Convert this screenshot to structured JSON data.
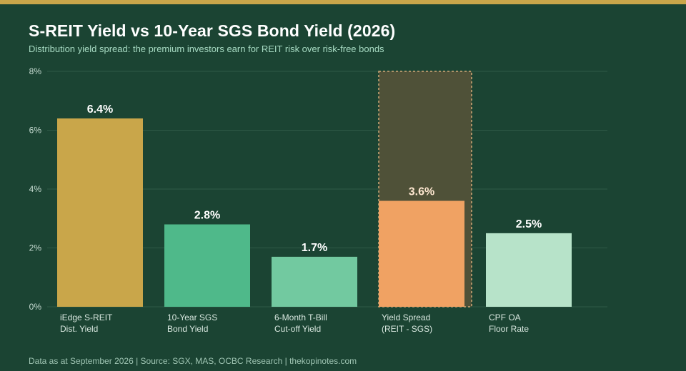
{
  "header": {
    "title": "S-REIT Yield vs 10-Year SGS Bond Yield (2026)",
    "subtitle": "Distribution yield spread: the premium investors earn for REIT risk over risk-free bonds"
  },
  "footer": {
    "text": "Data as at September 2026  |  Source: SGX, MAS, OCBC Research  |  thekopinotes.com"
  },
  "colors": {
    "background": "#1b4433",
    "accent": "#c9a64a",
    "gridline": "#2f5a47",
    "spread_highlight": "#4f5138",
    "spread_border": "#d1a979"
  },
  "chart_data": {
    "type": "bar",
    "title": "S-REIT Yield vs 10-Year SGS Bond Yield (2026)",
    "subtitle": "Distribution yield spread: the premium investors earn for REIT risk over risk-free bonds",
    "xlabel": "",
    "ylabel": "",
    "ylim": [
      0,
      8
    ],
    "yticks": [
      0,
      2,
      4,
      6,
      8
    ],
    "ytick_labels": [
      "0%",
      "2%",
      "4%",
      "6%",
      "8%"
    ],
    "grid": true,
    "categories": [
      [
        "iEdge S-REIT",
        "Dist. Yield"
      ],
      [
        "10-Year SGS",
        "Bond Yield"
      ],
      [
        "6-Month T-Bill",
        "Cut-off Yield"
      ],
      [
        "Yield Spread",
        "(REIT - SGS)"
      ],
      [
        "CPF OA",
        "Floor Rate"
      ]
    ],
    "values": [
      6.4,
      2.8,
      1.7,
      3.6,
      2.5
    ],
    "value_labels": [
      "6.4%",
      "2.8%",
      "1.7%",
      "3.6%",
      "2.5%"
    ],
    "bar_colors": [
      "#c9a64a",
      "#4fb98a",
      "#72c9a0",
      "#f0a263",
      "#b7e3c9"
    ],
    "label_colors": [
      "#ffffff",
      "#ffffff",
      "#ffffff",
      "#fde6cf",
      "#ffffff"
    ],
    "highlight": {
      "category_index": 3,
      "range": [
        0,
        8
      ],
      "style": "dashed"
    }
  }
}
